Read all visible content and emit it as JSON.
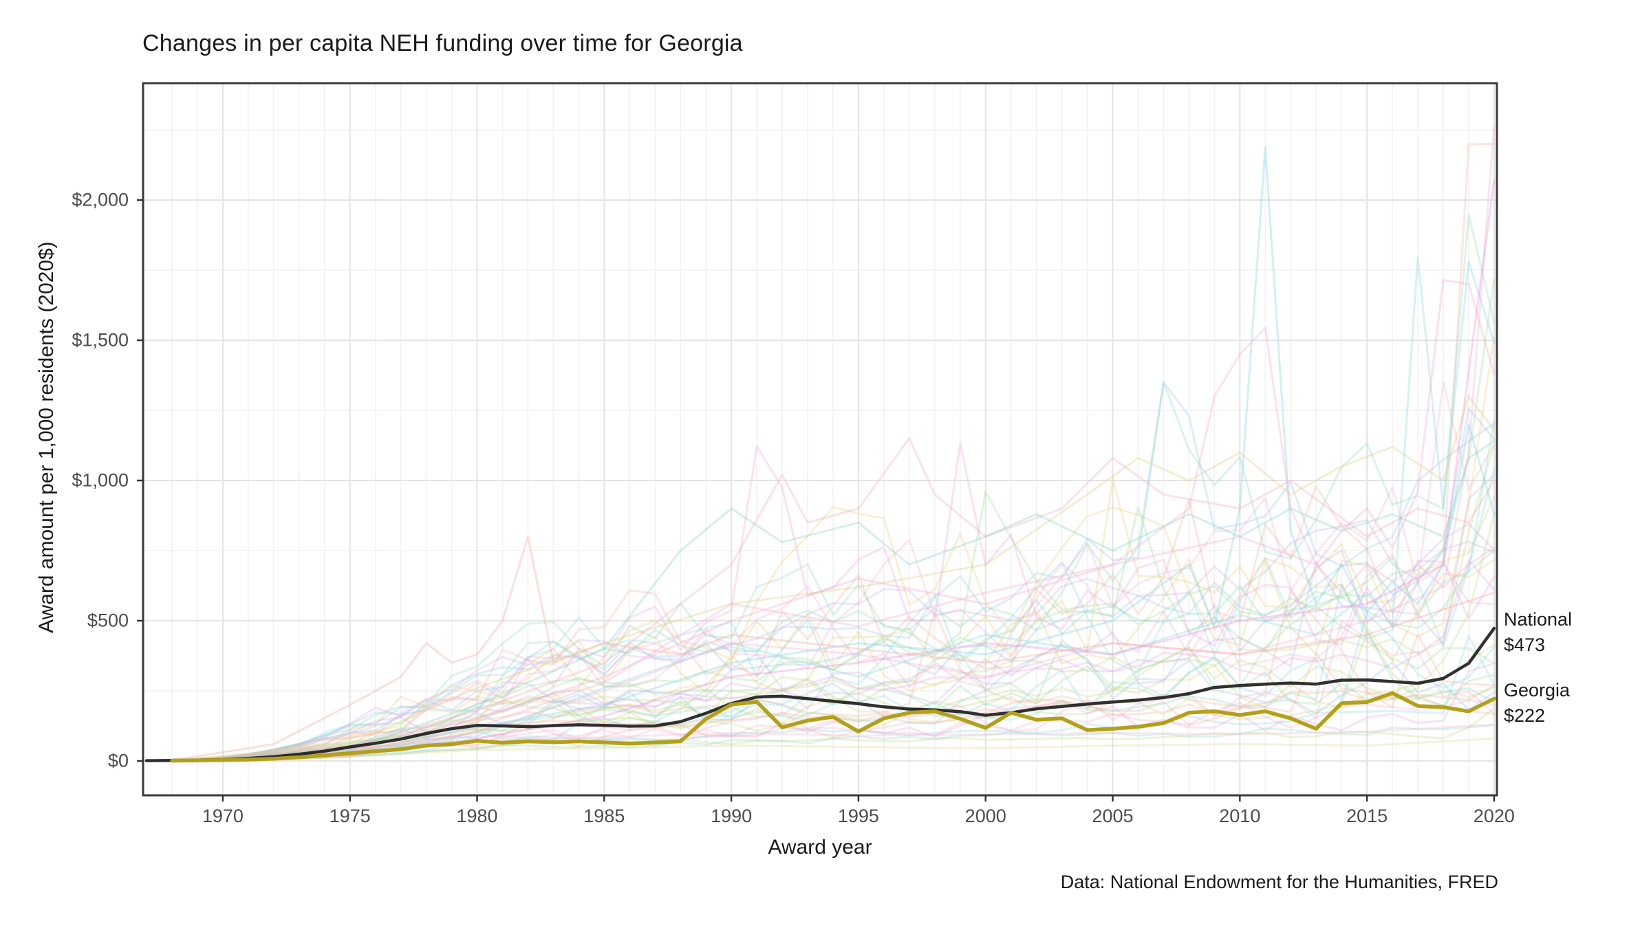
{
  "title": "Changes in per capita NEH funding over time for Georgia",
  "caption": "Data: National Endowment for the Humanities, FRED",
  "axes": {
    "x_title": "Award year",
    "y_title": "Award amount per 1,000 residents (2020$)",
    "x_tick_labels": [
      "1970",
      "1975",
      "1980",
      "1985",
      "1990",
      "1995",
      "2000",
      "2005",
      "2010",
      "2015",
      "2020"
    ],
    "x_tick_years": [
      1970,
      1975,
      1980,
      1985,
      1990,
      1995,
      2000,
      2005,
      2010,
      2015,
      2020
    ],
    "y_tick_labels": [
      "$0",
      "$500",
      "$1,000",
      "$1,500",
      "$2,000"
    ],
    "y_tick_values": [
      0,
      500,
      1000,
      1500,
      2000
    ]
  },
  "annotations": {
    "national": {
      "label": "National",
      "value": "$473"
    },
    "georgia": {
      "label": "Georgia",
      "value": "$222"
    }
  },
  "colors": {
    "background": "#ffffff",
    "panel_border": "#3a3a3a",
    "grid_major": "#e4e4e4",
    "grid_minor": "#f2f2f2",
    "tick_mark": "#333333",
    "tick_label": "#4d4d4d",
    "text": "#1a1a1a",
    "national_line": "#151515",
    "georgia_line": "#b3a019",
    "background_palette": [
      "#f7b3d4",
      "#f5b39e",
      "#e8d17e",
      "#c3d98a",
      "#9fdf9b",
      "#8fdcc0",
      "#8ed9e6",
      "#9cc7f0",
      "#c9b3ea",
      "#efa6e3"
    ]
  },
  "chart_data": {
    "type": "line",
    "title": "Changes in per capita NEH funding over time for Georgia",
    "xlabel": "Award year",
    "ylabel": "Award amount per 1,000 residents (2020$)",
    "x_range": [
      1967,
      2021
    ],
    "ylim": [
      0,
      2420
    ],
    "grid": true,
    "legend_position": "right-edge-annotations",
    "series": [
      {
        "name": "National",
        "start_year": 1967,
        "end_label": "National $473",
        "values": [
          1,
          2,
          3,
          5,
          9,
          15,
          24,
          35,
          50,
          63,
          78,
          98,
          115,
          127,
          125,
          122,
          126,
          129,
          127,
          124,
          125,
          140,
          170,
          205,
          228,
          231,
          222,
          213,
          204,
          193,
          185,
          182,
          176,
          163,
          172,
          186,
          194,
          203,
          210,
          217,
          226,
          240,
          262,
          269,
          274,
          278,
          274,
          288,
          289,
          283,
          277,
          294,
          348,
          473
        ]
      },
      {
        "name": "Georgia",
        "start_year": 1968,
        "end_label": "Georgia $222",
        "values": [
          1,
          2,
          3,
          5,
          8,
          13,
          20,
          28,
          35,
          42,
          55,
          60,
          72,
          65,
          70,
          67,
          70,
          66,
          62,
          66,
          70,
          150,
          201,
          211,
          120,
          144,
          157,
          105,
          152,
          172,
          177,
          150,
          118,
          172,
          147,
          152,
          110,
          115,
          122,
          135,
          172,
          177,
          164,
          177,
          152,
          115,
          206,
          210,
          242,
          196,
          192,
          177,
          222
        ]
      }
    ],
    "background_series": {
      "description": "Approximately 50 semi-transparent pastel state lines (one per state), 1968-2020, forming a braid mostly between $0 and $1,100 with occasional spikes.",
      "alpha": 0.32,
      "feature_lines": [
        {
          "name": "cyan-spike-2011",
          "color": "#7fd4e8",
          "points": [
            [
              1968,
              2
            ],
            [
              1975,
              30
            ],
            [
              1980,
              120
            ],
            [
              1985,
              200
            ],
            [
              1990,
              350
            ],
            [
              1995,
              420
            ],
            [
              2000,
              380
            ],
            [
              2005,
              500
            ],
            [
              2008,
              700
            ],
            [
              2009,
              480
            ],
            [
              2010,
              900
            ],
            [
              2011,
              2190
            ],
            [
              2012,
              820
            ],
            [
              2013,
              560
            ],
            [
              2014,
              700
            ],
            [
              2015,
              530
            ],
            [
              2016,
              640
            ],
            [
              2017,
              560
            ],
            [
              2018,
              700
            ],
            [
              2019,
              1200
            ],
            [
              2020,
              880
            ]
          ]
        },
        {
          "name": "cyan-spike-2017",
          "color": "#8ed9e6",
          "points": [
            [
              1968,
              2
            ],
            [
              1975,
              25
            ],
            [
              1980,
              90
            ],
            [
              1985,
              260
            ],
            [
              1990,
              420
            ],
            [
              1995,
              300
            ],
            [
              2000,
              450
            ],
            [
              2005,
              380
            ],
            [
              2010,
              520
            ],
            [
              2013,
              450
            ],
            [
              2015,
              600
            ],
            [
              2016,
              480
            ],
            [
              2017,
              1795
            ],
            [
              2018,
              900
            ],
            [
              2019,
              1780
            ],
            [
              2020,
              1490
            ]
          ]
        },
        {
          "name": "pink-step-2018",
          "color": "#f9a8cc",
          "points": [
            [
              1968,
              1
            ],
            [
              1975,
              40
            ],
            [
              1980,
              150
            ],
            [
              1985,
              300
            ],
            [
              1990,
              500
            ],
            [
              1995,
              650
            ],
            [
              2000,
              560
            ],
            [
              2005,
              700
            ],
            [
              2010,
              800
            ],
            [
              2013,
              700
            ],
            [
              2014,
              820
            ],
            [
              2015,
              900
            ],
            [
              2016,
              760
            ],
            [
              2017,
              960
            ],
            [
              2018,
              1715
            ],
            [
              2019,
              1700
            ],
            [
              2020,
              1380
            ]
          ]
        },
        {
          "name": "pink-end-spike",
          "color": "#f7b3d4",
          "points": [
            [
              1968,
              1
            ],
            [
              1975,
              35
            ],
            [
              1980,
              100
            ],
            [
              1985,
              250
            ],
            [
              1990,
              420
            ],
            [
              1995,
              380
            ],
            [
              2000,
              300
            ],
            [
              2005,
              420
            ],
            [
              2010,
              380
            ],
            [
              2015,
              500
            ],
            [
              2018,
              620
            ],
            [
              2019,
              1100
            ],
            [
              2020,
              2265
            ]
          ]
        },
        {
          "name": "magenta-end-spike",
          "color": "#ee8fd8",
          "points": [
            [
              1968,
              1
            ],
            [
              1975,
              20
            ],
            [
              1980,
              80
            ],
            [
              1985,
              160
            ],
            [
              1990,
              300
            ],
            [
              1995,
              350
            ],
            [
              2000,
              420
            ],
            [
              2005,
              380
            ],
            [
              2010,
              500
            ],
            [
              2015,
              560
            ],
            [
              2018,
              700
            ],
            [
              2019,
              1390
            ],
            [
              2020,
              2070
            ]
          ]
        },
        {
          "name": "pink-peak-2011",
          "color": "#f6aed2",
          "points": [
            [
              1968,
              1
            ],
            [
              1975,
              30
            ],
            [
              1980,
              120
            ],
            [
              1985,
              280
            ],
            [
              1990,
              560
            ],
            [
              1995,
              480
            ],
            [
              2000,
              600
            ],
            [
              2005,
              700
            ],
            [
              2008,
              900
            ],
            [
              2009,
              1300
            ],
            [
              2010,
              1450
            ],
            [
              2011,
              1545
            ],
            [
              2012,
              900
            ],
            [
              2013,
              700
            ],
            [
              2014,
              600
            ],
            [
              2015,
              700
            ],
            [
              2016,
              640
            ],
            [
              2017,
              700
            ],
            [
              2018,
              620
            ],
            [
              2019,
              700
            ],
            [
              2020,
              760
            ]
          ]
        },
        {
          "name": "salmon-peak-1982",
          "color": "#f4a89b",
          "points": [
            [
              1968,
              2
            ],
            [
              1972,
              60
            ],
            [
              1975,
              200
            ],
            [
              1977,
              300
            ],
            [
              1978,
              420
            ],
            [
              1979,
              350
            ],
            [
              1980,
              380
            ],
            [
              1981,
              500
            ],
            [
              1982,
              800
            ],
            [
              1983,
              350
            ],
            [
              1985,
              420
            ],
            [
              1988,
              380
            ],
            [
              1990,
              450
            ],
            [
              1995,
              400
            ],
            [
              2000,
              350
            ],
            [
              2005,
              420
            ],
            [
              2010,
              380
            ],
            [
              2015,
              450
            ],
            [
              2020,
              600
            ]
          ]
        },
        {
          "name": "pink-90s-high",
          "color": "#f5b0bc",
          "points": [
            [
              1968,
              1
            ],
            [
              1975,
              50
            ],
            [
              1980,
              180
            ],
            [
              1985,
              350
            ],
            [
              1990,
              700
            ],
            [
              1992,
              1020
            ],
            [
              1993,
              850
            ],
            [
              1995,
              900
            ],
            [
              1997,
              1150
            ],
            [
              1998,
              950
            ],
            [
              2000,
              800
            ],
            [
              2003,
              900
            ],
            [
              2005,
              1080
            ],
            [
              2007,
              950
            ],
            [
              2010,
              900
            ],
            [
              2012,
              1000
            ],
            [
              2015,
              800
            ],
            [
              2017,
              900
            ],
            [
              2019,
              850
            ],
            [
              2020,
              1000
            ]
          ]
        },
        {
          "name": "teal-mid",
          "color": "#85d6c2",
          "points": [
            [
              1968,
              2
            ],
            [
              1975,
              40
            ],
            [
              1980,
              200
            ],
            [
              1985,
              400
            ],
            [
              1988,
              750
            ],
            [
              1990,
              900
            ],
            [
              1992,
              780
            ],
            [
              1995,
              850
            ],
            [
              1997,
              700
            ],
            [
              2000,
              800
            ],
            [
              2002,
              880
            ],
            [
              2005,
              750
            ],
            [
              2008,
              880
            ],
            [
              2010,
              800
            ],
            [
              2012,
              900
            ],
            [
              2014,
              820
            ],
            [
              2016,
              880
            ],
            [
              2018,
              800
            ],
            [
              2019,
              1080
            ],
            [
              2020,
              1140
            ]
          ]
        },
        {
          "name": "khaki-mid",
          "color": "#ddcf85",
          "points": [
            [
              1968,
              1
            ],
            [
              1975,
              60
            ],
            [
              1980,
              260
            ],
            [
              1985,
              420
            ],
            [
              1990,
              560
            ],
            [
              1995,
              620
            ],
            [
              2000,
              700
            ],
            [
              2004,
              950
            ],
            [
              2006,
              1080
            ],
            [
              2008,
              1000
            ],
            [
              2010,
              1100
            ],
            [
              2012,
              950
            ],
            [
              2014,
              1050
            ],
            [
              2016,
              1120
            ],
            [
              2018,
              1000
            ],
            [
              2019,
              1300
            ],
            [
              2020,
              1180
            ]
          ]
        },
        {
          "name": "khaki-low-flat",
          "color": "#e3d79a",
          "points": [
            [
              1968,
              1
            ],
            [
              1975,
              15
            ],
            [
              1980,
              40
            ],
            [
              1985,
              45
            ],
            [
              1990,
              55
            ],
            [
              1995,
              50
            ],
            [
              2000,
              45
            ],
            [
              2005,
              55
            ],
            [
              2010,
              60
            ],
            [
              2015,
              55
            ],
            [
              2020,
              80
            ]
          ]
        },
        {
          "name": "pink-low-flat",
          "color": "#f6bcd8",
          "points": [
            [
              1968,
              1
            ],
            [
              1975,
              25
            ],
            [
              1980,
              70
            ],
            [
              1985,
              85
            ],
            [
              1990,
              100
            ],
            [
              1995,
              90
            ],
            [
              2000,
              95
            ],
            [
              2005,
              100
            ],
            [
              2010,
              95
            ],
            [
              2015,
              105
            ],
            [
              2020,
              130
            ]
          ]
        }
      ],
      "procedural": {
        "count": 36,
        "seed": 1000,
        "caps_by_era": {
          "before_1976": 260,
          "before_1985": 780,
          "before_2005": 1150,
          "after": 1350
        }
      }
    }
  }
}
